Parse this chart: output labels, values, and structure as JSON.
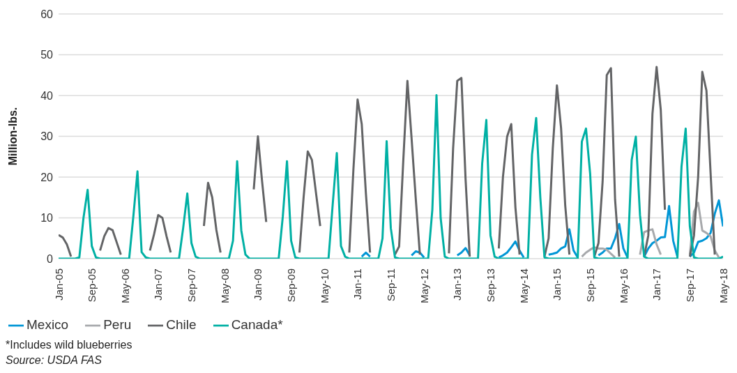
{
  "chart_data": {
    "type": "line",
    "ylabel": "Million-lbs.",
    "categories": [
      "Jan-05",
      null,
      null,
      null,
      null,
      null,
      null,
      null,
      "Sep-05",
      null,
      null,
      null,
      null,
      null,
      null,
      null,
      "May-06",
      null,
      null,
      null,
      null,
      null,
      null,
      null,
      "Jan-07",
      null,
      null,
      null,
      null,
      null,
      null,
      null,
      "Sep-07",
      null,
      null,
      null,
      null,
      null,
      null,
      null,
      "May-08",
      null,
      null,
      null,
      null,
      null,
      null,
      null,
      "Jan-09",
      null,
      null,
      null,
      null,
      null,
      null,
      null,
      "Sep-09",
      null,
      null,
      null,
      null,
      null,
      null,
      null,
      "May-10",
      null,
      null,
      null,
      null,
      null,
      null,
      null,
      "Jan-11",
      null,
      null,
      null,
      null,
      null,
      null,
      null,
      "Sep-11",
      null,
      null,
      null,
      null,
      null,
      null,
      null,
      "May-12",
      null,
      null,
      null,
      null,
      null,
      null,
      null,
      "Jan-13",
      null,
      null,
      null,
      null,
      null,
      null,
      null,
      "Sep-13",
      null,
      null,
      null,
      null,
      null,
      null,
      null,
      "May-14",
      null,
      null,
      null,
      null,
      null,
      null,
      null,
      "Jan-15",
      null,
      null,
      null,
      null,
      null,
      null,
      null,
      "Sep-15",
      null,
      null,
      null,
      null,
      null,
      null,
      null,
      "May-16",
      null,
      null,
      null,
      null,
      null,
      null,
      null,
      "Jan-17",
      null,
      null,
      null,
      null,
      null,
      null,
      null,
      "Sep-17",
      null,
      null,
      null,
      null,
      null,
      null,
      null,
      "May-18"
    ],
    "series": [
      {
        "name": "Mexico",
        "color": "#0096d6",
        "values": [
          null,
          null,
          null,
          null,
          null,
          null,
          null,
          null,
          null,
          null,
          null,
          null,
          null,
          null,
          null,
          null,
          null,
          null,
          null,
          null,
          null,
          null,
          null,
          null,
          null,
          null,
          null,
          null,
          null,
          null,
          null,
          null,
          null,
          null,
          null,
          null,
          null,
          null,
          null,
          null,
          null,
          null,
          null,
          null,
          null,
          null,
          null,
          null,
          null,
          null,
          null,
          null,
          null,
          null,
          null,
          null,
          null,
          null,
          null,
          null,
          null,
          null,
          null,
          null,
          null,
          null,
          null,
          null,
          null,
          null,
          null,
          null,
          null,
          0.5,
          1.5,
          0.5,
          null,
          null,
          null,
          null,
          null,
          null,
          null,
          null,
          null,
          0.8,
          1.8,
          1.5,
          0.3,
          null,
          null,
          null,
          null,
          null,
          null,
          null,
          0.8,
          1.5,
          2.6,
          0.8,
          null,
          null,
          null,
          null,
          null,
          null,
          0.3,
          0.8,
          1.5,
          2.8,
          4.2,
          2,
          0.3,
          null,
          null,
          null,
          null,
          null,
          1,
          1.2,
          1.5,
          2.5,
          3,
          7.2,
          2,
          0.3,
          null,
          null,
          null,
          null,
          0.8,
          1.5,
          2.5,
          2.5,
          5,
          8.5,
          2.5,
          0.3,
          null,
          null,
          null,
          0.5,
          2.5,
          3.8,
          4.4,
          5.2,
          5.3,
          12.9,
          4.4,
          0.5,
          null,
          null,
          0.5,
          1.5,
          4.1,
          4.4,
          5,
          6.3,
          11,
          14.3,
          7.9
        ]
      },
      {
        "name": "Peru",
        "color": "#a7a9ac",
        "values": [
          null,
          null,
          null,
          null,
          null,
          null,
          null,
          null,
          null,
          null,
          null,
          null,
          null,
          null,
          null,
          null,
          null,
          null,
          null,
          null,
          null,
          null,
          null,
          null,
          null,
          null,
          null,
          null,
          null,
          null,
          null,
          null,
          null,
          null,
          null,
          null,
          null,
          null,
          null,
          null,
          null,
          null,
          null,
          null,
          null,
          null,
          null,
          null,
          null,
          null,
          null,
          null,
          null,
          null,
          null,
          null,
          null,
          null,
          null,
          null,
          null,
          null,
          null,
          null,
          null,
          null,
          null,
          null,
          null,
          null,
          null,
          null,
          null,
          null,
          null,
          null,
          null,
          null,
          null,
          null,
          null,
          null,
          null,
          null,
          null,
          null,
          null,
          null,
          null,
          null,
          null,
          null,
          null,
          null,
          null,
          null,
          null,
          null,
          null,
          null,
          null,
          null,
          null,
          null,
          null,
          null,
          null,
          null,
          null,
          null,
          null,
          null,
          null,
          null,
          null,
          null,
          null,
          null,
          null,
          null,
          null,
          null,
          null,
          null,
          null,
          null,
          0.5,
          1.5,
          2.2,
          2.8,
          2.5,
          2.5,
          2.2,
          1.2,
          0.3,
          null,
          null,
          null,
          null,
          null,
          1,
          6.5,
          6.9,
          7.2,
          3.5,
          1,
          null,
          null,
          null,
          null,
          null,
          null,
          1,
          11.5,
          13.7,
          6.9,
          6.3,
          5.5,
          2,
          0.3,
          null
        ]
      },
      {
        "name": "Chile",
        "color": "#636466",
        "values": [
          5.8,
          5.2,
          3.5,
          0.5,
          null,
          null,
          null,
          null,
          null,
          null,
          2,
          5.5,
          7.5,
          7,
          4,
          1,
          null,
          null,
          null,
          null,
          null,
          null,
          2,
          6,
          10.7,
          10,
          5.5,
          1.5,
          null,
          null,
          null,
          null,
          null,
          null,
          null,
          8,
          18.6,
          15,
          7,
          1.5,
          null,
          null,
          null,
          null,
          null,
          null,
          null,
          17,
          30,
          19,
          9,
          null,
          null,
          null,
          null,
          null,
          null,
          null,
          1.5,
          15,
          26.3,
          24.2,
          16,
          8,
          null,
          null,
          null,
          null,
          null,
          null,
          1.5,
          22,
          39,
          33,
          16,
          1.5,
          null,
          null,
          null,
          null,
          null,
          1,
          3,
          24,
          43.6,
          29.5,
          14.8,
          1,
          null,
          null,
          null,
          null,
          null,
          null,
          1.3,
          27,
          43.6,
          44.3,
          19.5,
          0.5,
          null,
          null,
          null,
          null,
          null,
          null,
          2.5,
          20,
          29.9,
          33,
          12.6,
          1,
          null,
          null,
          null,
          null,
          null,
          0.5,
          5,
          27,
          42.5,
          32,
          13,
          1,
          null,
          null,
          null,
          null,
          null,
          0.5,
          3.8,
          18.9,
          45,
          46.7,
          14.5,
          0.5,
          null,
          null,
          null,
          null,
          null,
          0.5,
          5.7,
          35.5,
          47,
          36.5,
          12,
          null,
          null,
          null,
          null,
          null,
          0.5,
          5.7,
          20,
          45.8,
          41.2,
          21,
          1,
          null,
          null
        ]
      },
      {
        "name": "Canada*",
        "color": "#00b0a4",
        "values": [
          0,
          0,
          0,
          0,
          0,
          0.3,
          10,
          16.9,
          3.1,
          0.3,
          0,
          0,
          0,
          0,
          0,
          0,
          0,
          0,
          10.3,
          21.4,
          1.6,
          0.3,
          0,
          0,
          0,
          0,
          0,
          0,
          0,
          0,
          7.5,
          16,
          3.8,
          0.5,
          0,
          0,
          0,
          0,
          0,
          0,
          0,
          0,
          4.4,
          23.9,
          6.9,
          1,
          0,
          0,
          0,
          0,
          0,
          0,
          0,
          0,
          10.4,
          23.9,
          4.4,
          0.3,
          0,
          0,
          0,
          0,
          0,
          0,
          0,
          0,
          13.2,
          25.9,
          3.1,
          0.5,
          0,
          0,
          0,
          0,
          0,
          0,
          0,
          0,
          5,
          28.8,
          7.5,
          0.3,
          0,
          0,
          0,
          0,
          0,
          0,
          0,
          0,
          12,
          40.1,
          10,
          0.5,
          0,
          0,
          0,
          0,
          0,
          0,
          0,
          0,
          23.3,
          34,
          5.7,
          0.5,
          0,
          0,
          0,
          0,
          0,
          0,
          0,
          0,
          25.5,
          34.5,
          15,
          0.3,
          0,
          0,
          0,
          0,
          0,
          0,
          0,
          0,
          28.7,
          31.9,
          20.8,
          0.3,
          0,
          0,
          0,
          0,
          0,
          0,
          0,
          0,
          24.2,
          29.9,
          10.7,
          0.5,
          0,
          0,
          0,
          0,
          0,
          0,
          0,
          0,
          22.6,
          31.9,
          8,
          0.3,
          0,
          0,
          0,
          0,
          0,
          0,
          0.5
        ]
      }
    ],
    "ylim": [
      0,
      60
    ],
    "yticks": [
      0,
      10,
      20,
      30,
      40,
      50,
      60
    ],
    "grid": "y",
    "legend": "bottom left",
    "marker": "none",
    "line_style": "solid",
    "annotations": [
      "*Includes wild blueberries",
      "Source: USDA FAS"
    ]
  }
}
